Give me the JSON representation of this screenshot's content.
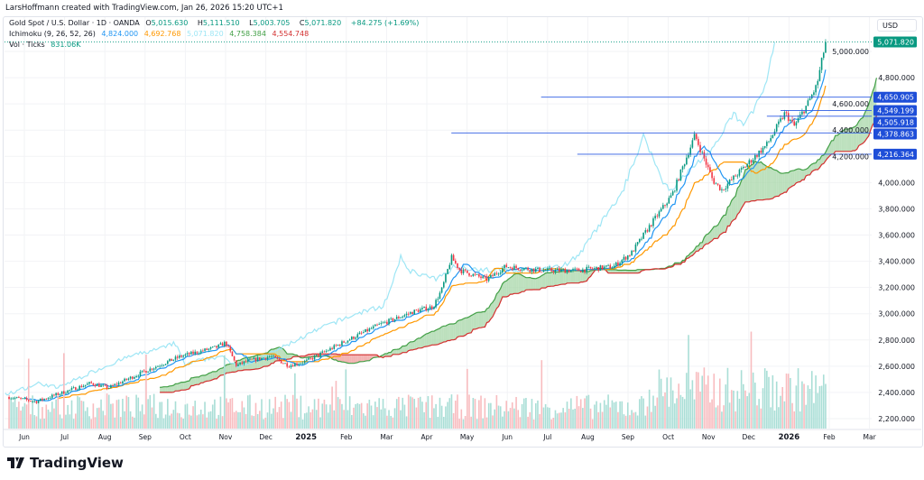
{
  "credit": "LarsHoffmann created with TradingView.com, Jan 26, 2026 15:20 UTC+1",
  "legend": {
    "symbol": "Gold Spot / U.S. Dollar · 1D · OANDA",
    "o_label": "O",
    "open": "5,015.630",
    "h_label": "H",
    "high": "5,111.510",
    "l_label": "L",
    "low": "5,003.705",
    "c_label": "C",
    "close": "5,071.820",
    "change": "+84.275 (+1.69%)",
    "ichimoku_label": "Ichimoku (9, 26, 52, 26)",
    "ichi_conversion": "4,824.000",
    "ichi_base": "4,692.768",
    "ichi_lagging": "5,071.820",
    "ichi_span_a": "4,758.384",
    "ichi_span_b": "4,554.748",
    "vol_label": "Vol · Ticks",
    "vol_value": "831.06K"
  },
  "currency": "USD",
  "brand": "TradingView",
  "colors": {
    "up": "#089981",
    "down": "#f23645",
    "conversion": "#2196f3",
    "base": "#ff9800",
    "lagging": "#9ee6f5",
    "span_a": "#43a047",
    "span_b": "#d32f2f",
    "cloud_up": "#a5d6a7",
    "cloud_down": "#ef9a9a",
    "hline": "#2d5be3",
    "label_bg": "#1e4ed8"
  },
  "chart_data": {
    "type": "candlestick",
    "title": "Gold Spot / U.S. Dollar · 1D · OANDA",
    "ylabel": "USD",
    "ylim": [
      2200,
      5000
    ],
    "yticks": [
      "2,200.000",
      "2,400.000",
      "2,600.000",
      "2,800.000",
      "3,000.000",
      "3,200.000",
      "3,400.000",
      "3,600.000",
      "3,800.000",
      "4,000.000",
      "4,200.000",
      "4,400.000",
      "4,600.000",
      "4,800.000",
      "5,000.000"
    ],
    "ytick_values": [
      2200,
      2400,
      2600,
      2800,
      3000,
      3200,
      3400,
      3600,
      3800,
      4000,
      4200,
      4400,
      4600,
      4800,
      5000
    ],
    "xticks": [
      "Jun",
      "Jul",
      "Aug",
      "Sep",
      "Oct",
      "Nov",
      "Dec",
      "2025",
      "Feb",
      "Mar",
      "Apr",
      "May",
      "Jun",
      "Jul",
      "Aug",
      "Sep",
      "Oct",
      "Nov",
      "Dec",
      "2026",
      "Feb",
      "Mar"
    ],
    "price_path_months_since_jun2024": [
      [
        -0.38,
        2365
      ],
      [
        0.29,
        2330
      ],
      [
        0.96,
        2400
      ],
      [
        1.64,
        2470
      ],
      [
        2.09,
        2435
      ],
      [
        2.98,
        2560
      ],
      [
        3.88,
        2675
      ],
      [
        4.78,
        2745
      ],
      [
        5.0,
        2780
      ],
      [
        5.27,
        2605
      ],
      [
        5.56,
        2640
      ],
      [
        6.12,
        2675
      ],
      [
        6.57,
        2605
      ],
      [
        7.02,
        2640
      ],
      [
        7.91,
        2780
      ],
      [
        8.81,
        2915
      ],
      [
        9.71,
        3020
      ],
      [
        10.16,
        3055
      ],
      [
        10.38,
        3190
      ],
      [
        10.61,
        3430
      ],
      [
        10.83,
        3330
      ],
      [
        11.5,
        3260
      ],
      [
        11.95,
        3360
      ],
      [
        12.85,
        3330
      ],
      [
        13.74,
        3330
      ],
      [
        14.64,
        3360
      ],
      [
        15.09,
        3465
      ],
      [
        15.54,
        3670
      ],
      [
        16.1,
        3910
      ],
      [
        16.66,
        4360
      ],
      [
        17.11,
        4015
      ],
      [
        17.33,
        3945
      ],
      [
        17.78,
        4085
      ],
      [
        18.45,
        4290
      ],
      [
        18.9,
        4530
      ],
      [
        19.13,
        4430
      ],
      [
        19.46,
        4600
      ],
      [
        19.69,
        4740
      ],
      [
        19.91,
        5071.82
      ]
    ],
    "current_price": {
      "value": 5071.82,
      "label": "5,071.820"
    },
    "horizontal_levels": [
      {
        "value": 4650.905,
        "label": "4,650.905",
        "from_month": 12.84
      },
      {
        "value": 4549.199,
        "label": "4,549.199",
        "from_month": 18.79
      },
      {
        "value": 4505.918,
        "label": "4,505.918",
        "from_month": 18.45
      },
      {
        "value": 4378.863,
        "label": "4,378.863",
        "from_month": 10.61
      },
      {
        "value": 4216.364,
        "label": "4,216.364",
        "from_month": 13.74
      }
    ],
    "indicators": [
      "Ichimoku (9, 26, 52, 26)",
      "Volume (Ticks)"
    ]
  }
}
